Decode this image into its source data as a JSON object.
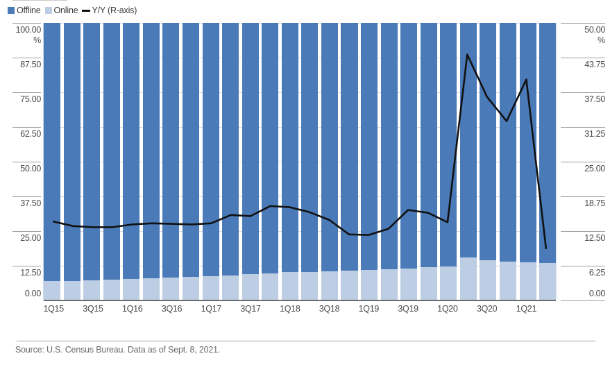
{
  "legend": {
    "position": "top-left",
    "items": [
      {
        "label": "Offline",
        "swatch": "square",
        "color": "#4a7ab8"
      },
      {
        "label": "Online",
        "swatch": "square",
        "color": "#bdcde3"
      },
      {
        "label": "Y/Y (R-axis)",
        "swatch": "line",
        "color": "#111111"
      }
    ]
  },
  "chart_data": {
    "type": "bar",
    "subtype": "100-percent-stacked-columns-with-line-overlay",
    "grid": true,
    "legend_position": "top-left",
    "categories": [
      "1Q15",
      "2Q15",
      "3Q15",
      "4Q15",
      "1Q16",
      "2Q16",
      "3Q16",
      "4Q16",
      "1Q17",
      "2Q17",
      "3Q17",
      "4Q17",
      "1Q18",
      "2Q18",
      "3Q18",
      "4Q18",
      "1Q19",
      "2Q19",
      "3Q19",
      "4Q19",
      "1Q20",
      "2Q20",
      "3Q20",
      "4Q20",
      "1Q21",
      "2Q21"
    ],
    "x_tick_labels": [
      "1Q15",
      "3Q15",
      "1Q16",
      "3Q16",
      "1Q17",
      "3Q17",
      "1Q18",
      "3Q18",
      "1Q19",
      "3Q19",
      "1Q20",
      "3Q20",
      "1Q21"
    ],
    "left_axis": {
      "unit": "%",
      "min": 0,
      "max": 100,
      "step": 12.5,
      "ticks": [
        "100.00",
        "87.50",
        "75.00",
        "62.50",
        "50.00",
        "37.50",
        "25.00",
        "12.50",
        "0.00"
      ]
    },
    "right_axis": {
      "unit": "%",
      "min": 0,
      "max": 50,
      "step": 6.25,
      "ticks": [
        "50.00",
        "43.75",
        "37.50",
        "31.25",
        "25.00",
        "18.75",
        "12.50",
        "6.25",
        "0.00"
      ]
    },
    "stack_total": 100,
    "series": [
      {
        "name": "Offline",
        "type": "bar",
        "axis": "left",
        "color": "#4a7ab8",
        "values": [
          93.1,
          93.0,
          92.8,
          92.4,
          92.2,
          92.0,
          91.8,
          91.6,
          91.2,
          90.9,
          90.6,
          90.3,
          89.8,
          89.7,
          89.6,
          89.2,
          89.0,
          88.7,
          88.4,
          88.0,
          87.7,
          84.5,
          85.5,
          86.0,
          86.3,
          86.6
        ]
      },
      {
        "name": "Online",
        "type": "bar",
        "axis": "left",
        "color": "#bdcde3",
        "values": [
          6.9,
          7.0,
          7.2,
          7.6,
          7.8,
          8.0,
          8.2,
          8.4,
          8.8,
          9.1,
          9.4,
          9.7,
          10.2,
          10.3,
          10.4,
          10.8,
          11.0,
          11.3,
          11.6,
          12.0,
          12.3,
          15.5,
          14.5,
          14.0,
          13.7,
          13.4
        ]
      },
      {
        "name": "Y/Y (R-axis)",
        "type": "line",
        "axis": "right",
        "color": "#111111",
        "values": [
          14.2,
          13.4,
          13.2,
          13.2,
          13.7,
          13.9,
          13.8,
          13.7,
          13.9,
          15.4,
          15.2,
          17.0,
          16.8,
          15.9,
          14.5,
          11.9,
          11.8,
          12.9,
          16.3,
          15.8,
          14.1,
          44.3,
          36.7,
          32.3,
          39.8,
          9.4
        ]
      }
    ],
    "colors": {
      "gridline": "#d9d9d9",
      "axis_text": "#4a4a4a",
      "axis_line": "#696969",
      "tick": "#9c9c9c",
      "plot_border": "#bccde3"
    }
  },
  "source": {
    "text": "Source: U.S. Census Bureau. Data as of Sept. 8, 2021."
  }
}
